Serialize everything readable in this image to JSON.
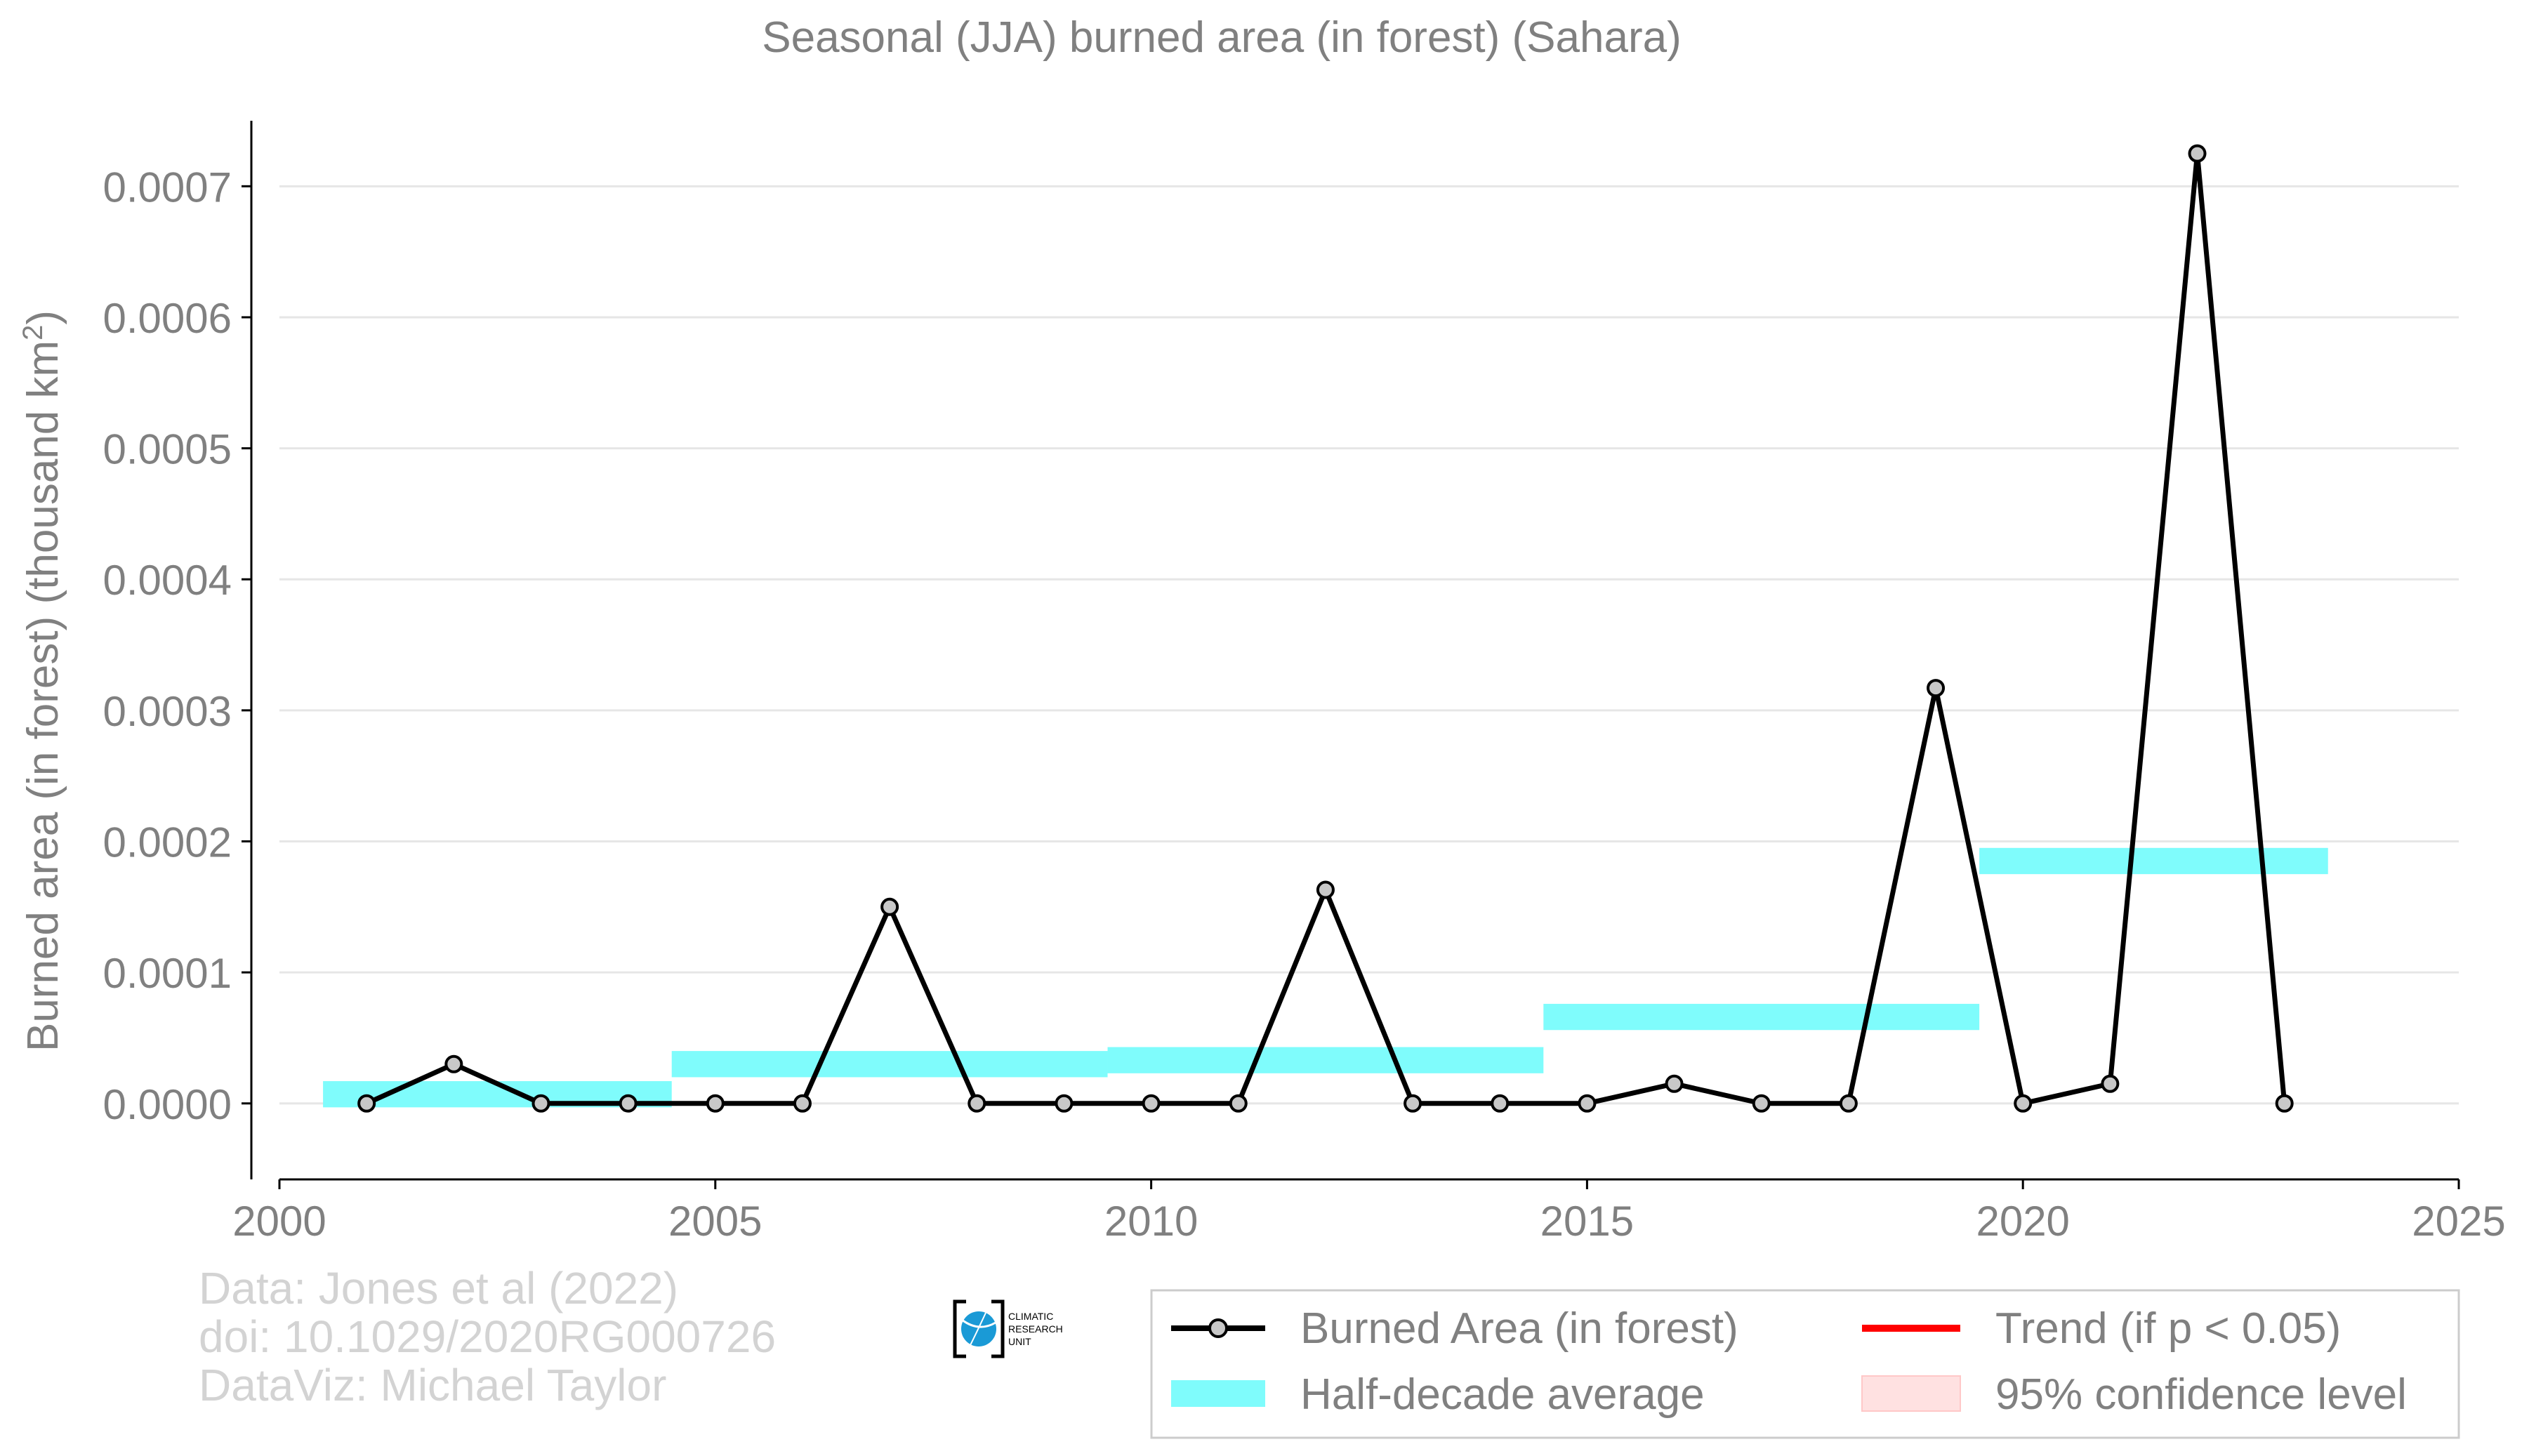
{
  "chart_data": {
    "type": "line",
    "title": "Seasonal (JJA) burned area (in forest) (Sahara)",
    "xlabel": "",
    "ylabel": "Burned area (in forest) (thousand km",
    "ylabel_sup": "2",
    "ylabel_close": ")",
    "xlim": [
      2000,
      2025
    ],
    "ylim": [
      -5.8e-05,
      0.00075
    ],
    "xticks": [
      2000,
      2005,
      2010,
      2015,
      2020,
      2025
    ],
    "xtick_labels": [
      "2000",
      "2005",
      "2010",
      "2015",
      "2020",
      "2025"
    ],
    "yticks": [
      0,
      0.0001,
      0.0002,
      0.0003,
      0.0004,
      0.0005,
      0.0006,
      0.0007
    ],
    "ytick_labels": [
      "0.0000",
      "0.0001",
      "0.0002",
      "0.0003",
      "0.0004",
      "0.0005",
      "0.0006",
      "0.0007"
    ],
    "grid": true,
    "series": [
      {
        "name": "Burned Area (in forest)",
        "x": [
          2001,
          2002,
          2003,
          2004,
          2005,
          2006,
          2007,
          2008,
          2009,
          2010,
          2011,
          2012,
          2013,
          2014,
          2015,
          2016,
          2017,
          2018,
          2019,
          2020,
          2021,
          2022,
          2023
        ],
        "y": [
          0.0,
          3e-05,
          0.0,
          0.0,
          0.0,
          0.0,
          0.00015,
          0.0,
          0.0,
          0.0,
          0.0,
          0.000163,
          0.0,
          0.0,
          0.0,
          1.5e-05,
          0.0,
          0.0,
          0.000317,
          0.0,
          1.5e-05,
          0.000725,
          0.0
        ]
      }
    ],
    "half_decade_average": {
      "name": "Half-decade average",
      "segments": [
        {
          "x_start": 2000.5,
          "x_end": 2004.5,
          "y": 7e-06
        },
        {
          "x_start": 2004.5,
          "x_end": 2009.5,
          "y": 3e-05
        },
        {
          "x_start": 2009.5,
          "x_end": 2014.5,
          "y": 3.3e-05
        },
        {
          "x_start": 2014.5,
          "x_end": 2019.5,
          "y": 6.6e-05
        },
        {
          "x_start": 2019.5,
          "x_end": 2023.5,
          "y": 0.000185
        }
      ],
      "band_halfwidth": 1e-05
    },
    "legend": {
      "position": "bottom-right",
      "entries": [
        {
          "label": "Burned Area (in forest)",
          "kind": "line-marker"
        },
        {
          "label": "Trend (if p < 0.05)",
          "kind": "line"
        },
        {
          "label": "Half-decade average",
          "kind": "band"
        },
        {
          "label": "95% confidence level",
          "kind": "patch"
        }
      ]
    },
    "source_lines": [
      "Data: Jones et al (2022)",
      "doi: 10.1029/2020RG000726",
      "DataViz: Michael Taylor"
    ],
    "logo_text": [
      "CLIMATIC",
      "RESEARCH",
      "UNIT"
    ],
    "colors": {
      "line": "#000000",
      "marker_fill": "#c8c8c8",
      "half_decade": "#7ffcfc",
      "trend": "#ff0000",
      "confidence": "#ffe1e1",
      "text": "#808080",
      "source_text": "#d3d3d3",
      "grid": "#e6e6e6",
      "logo_blue": "#1a9ad6"
    }
  }
}
